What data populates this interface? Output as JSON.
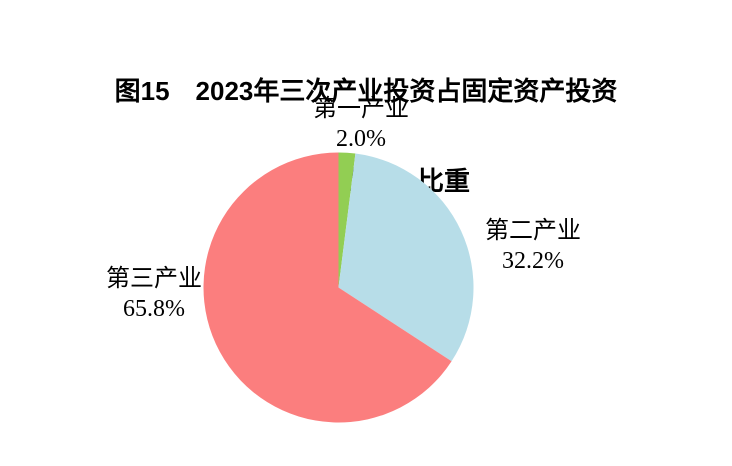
{
  "title": {
    "line1": "图15　2023年三次产业投资占固定资产投资",
    "line2": "（不含农户）比重"
  },
  "chart_data": {
    "type": "pie",
    "title": "图15 2023年三次产业投资占固定资产投资（不含农户）比重",
    "unit": "%",
    "start_angle_deg": 0,
    "direction": "clockwise",
    "legend_position": "none",
    "labels_position": "outside",
    "background_color": "#ffffff",
    "slices": [
      {
        "id": "primary-industry",
        "label": "第一产业",
        "value": 2.0,
        "display": "2.0%",
        "color": "#92ce53"
      },
      {
        "id": "secondary-industry",
        "label": "第二产业",
        "value": 32.2,
        "display": "32.2%",
        "color": "#b7dde8"
      },
      {
        "id": "tertiary-industry",
        "label": "第三产业",
        "value": 65.8,
        "display": "65.8%",
        "color": "#fb7e7e"
      }
    ]
  }
}
